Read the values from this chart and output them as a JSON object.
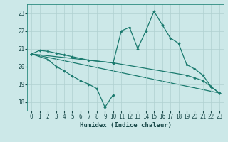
{
  "xlabel": "Humidex (Indice chaleur)",
  "background_color": "#cce8e8",
  "grid_color": "#b0d0d0",
  "line_color": "#1a7a6e",
  "xlim": [
    -0.5,
    23.5
  ],
  "ylim": [
    17.5,
    23.5
  ],
  "yticks": [
    18,
    19,
    20,
    21,
    22,
    23
  ],
  "xticks": [
    0,
    1,
    2,
    3,
    4,
    5,
    6,
    7,
    8,
    9,
    10,
    11,
    12,
    13,
    14,
    15,
    16,
    17,
    18,
    19,
    20,
    21,
    22,
    23
  ],
  "series": [
    {
      "x": [
        0,
        1,
        2,
        3,
        4,
        5,
        6,
        7,
        10,
        19,
        20,
        21,
        22,
        23
      ],
      "y": [
        20.7,
        20.9,
        20.85,
        20.75,
        20.65,
        20.55,
        20.45,
        20.35,
        20.2,
        19.5,
        19.35,
        19.2,
        18.85,
        18.5
      ]
    },
    {
      "x": [
        0,
        2,
        3,
        4,
        5,
        6,
        7,
        8,
        9,
        10
      ],
      "y": [
        20.7,
        20.4,
        20.0,
        19.75,
        19.45,
        19.2,
        19.0,
        18.75,
        17.7,
        18.4
      ]
    },
    {
      "x": [
        0,
        10,
        11,
        12,
        13,
        14,
        15,
        16,
        17,
        18,
        19,
        20,
        21,
        22,
        23
      ],
      "y": [
        20.7,
        20.2,
        22.0,
        22.2,
        21.0,
        22.0,
        23.1,
        22.35,
        21.6,
        21.3,
        20.1,
        19.85,
        19.5,
        18.85,
        18.5
      ]
    },
    {
      "x": [
        0,
        23
      ],
      "y": [
        20.7,
        18.5
      ]
    }
  ]
}
